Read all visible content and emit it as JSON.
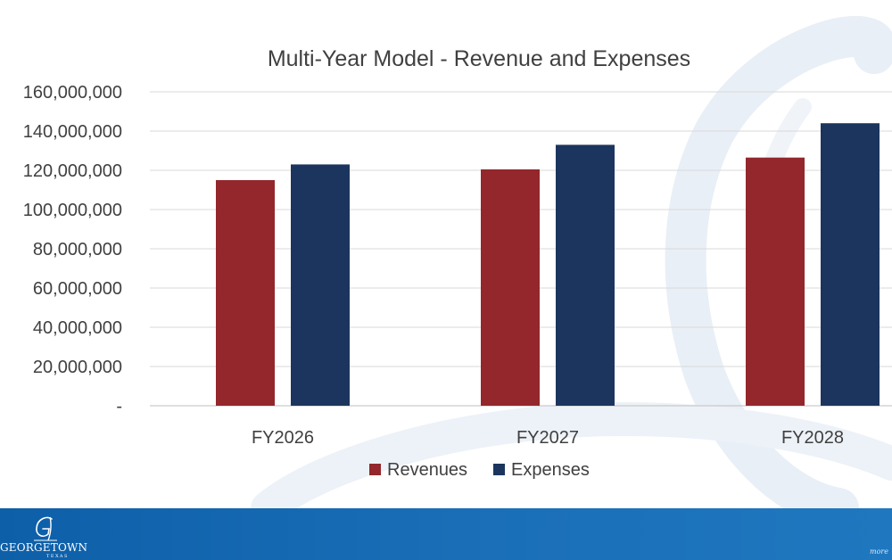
{
  "chart_data": {
    "type": "bar",
    "title": "Multi-Year Model - Revenue and Expenses",
    "xlabel": "",
    "ylabel": "",
    "categories": [
      "FY2026",
      "FY2027",
      "FY2028"
    ],
    "series": [
      {
        "name": "Revenues",
        "color": "#93272c",
        "values": [
          115000000,
          120500000,
          126500000
        ]
      },
      {
        "name": "Expenses",
        "color": "#1c355e",
        "values": [
          123000000,
          133000000,
          144000000
        ]
      }
    ],
    "ylim": [
      0,
      160000000
    ],
    "yticks": [
      {
        "value": 0,
        "label": "-"
      },
      {
        "value": 20000000,
        "label": "20,000,000"
      },
      {
        "value": 40000000,
        "label": "40,000,000"
      },
      {
        "value": 60000000,
        "label": "60,000,000"
      },
      {
        "value": 80000000,
        "label": "80,000,000"
      },
      {
        "value": 100000000,
        "label": "100,000,000"
      },
      {
        "value": 120000000,
        "label": "120,000,000"
      },
      {
        "value": 140000000,
        "label": "140,000,000"
      },
      {
        "value": 160000000,
        "label": "160,000,000"
      }
    ],
    "grid": true,
    "legend": "bottom"
  },
  "footer": {
    "logo_name": "GEORGETOWN",
    "logo_sub": "TEXAS",
    "more_text": "more"
  },
  "colors": {
    "footer": "#1a6fb8",
    "gridline": "#d9d9d9",
    "text": "#404040"
  }
}
